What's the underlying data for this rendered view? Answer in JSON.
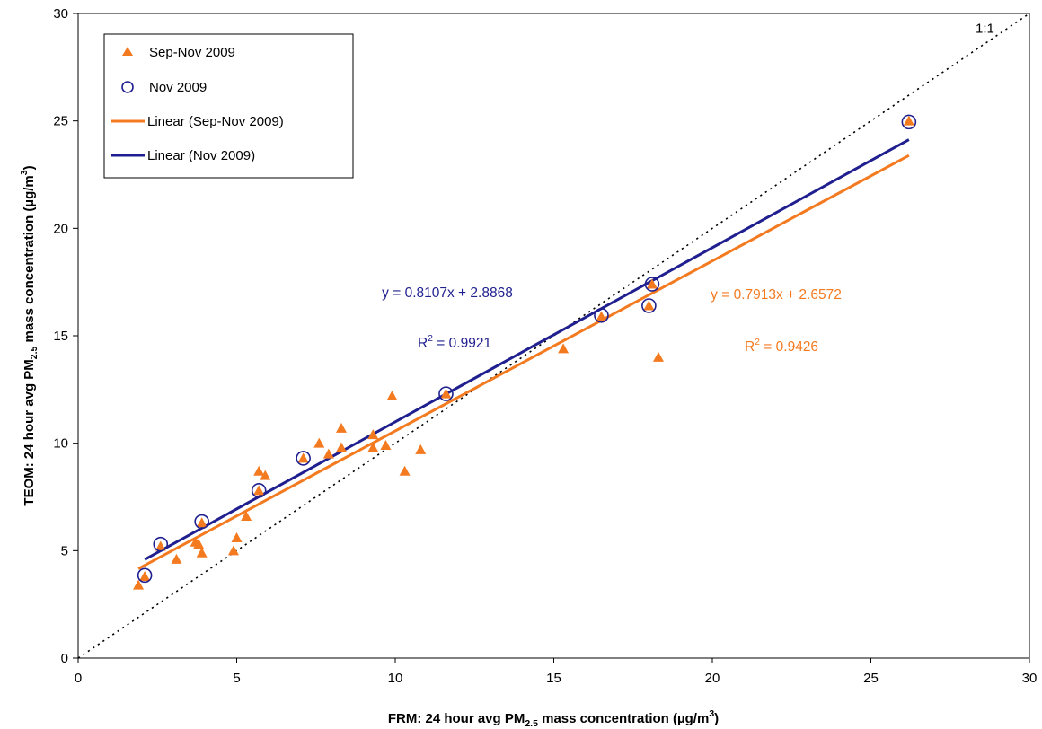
{
  "chart_data": {
    "type": "scatter",
    "xlabel": {
      "before": "FRM:  24 hour avg PM",
      "sub": "2.5",
      "middle": " mass concentration (µg/m",
      "sup": "3",
      "after": ")"
    },
    "ylabel": {
      "before": "TEOM:  24 hour avg PM",
      "sub": "2.5",
      "middle": " mass concentration (µg/m",
      "sup": "3",
      "after": ")"
    },
    "xlim": [
      0,
      30
    ],
    "ylim": [
      0,
      30
    ],
    "xticks": [
      0,
      5,
      10,
      15,
      20,
      25,
      30
    ],
    "yticks": [
      0,
      5,
      10,
      15,
      20,
      25,
      30
    ],
    "grid": false,
    "legend_position": "top-left",
    "series": [
      {
        "name": "Sep-Nov 2009",
        "marker": "triangle",
        "color": "#F47A20",
        "points": [
          [
            1.9,
            3.4
          ],
          [
            2.1,
            3.8
          ],
          [
            2.6,
            5.2
          ],
          [
            3.1,
            4.6
          ],
          [
            3.7,
            5.4
          ],
          [
            3.8,
            5.3
          ],
          [
            3.9,
            4.9
          ],
          [
            3.9,
            6.3
          ],
          [
            4.9,
            5.0
          ],
          [
            5.0,
            5.6
          ],
          [
            5.3,
            6.6
          ],
          [
            5.7,
            7.8
          ],
          [
            5.7,
            8.7
          ],
          [
            5.9,
            8.5
          ],
          [
            7.1,
            9.3
          ],
          [
            7.6,
            10.0
          ],
          [
            7.9,
            9.5
          ],
          [
            8.3,
            9.8
          ],
          [
            8.3,
            10.7
          ],
          [
            9.3,
            10.4
          ],
          [
            9.3,
            9.8
          ],
          [
            9.7,
            9.9
          ],
          [
            9.9,
            12.2
          ],
          [
            10.3,
            8.7
          ],
          [
            10.8,
            9.7
          ],
          [
            11.6,
            12.3
          ],
          [
            15.3,
            14.4
          ],
          [
            16.5,
            15.9
          ],
          [
            18.0,
            16.4
          ],
          [
            18.1,
            17.4
          ],
          [
            18.3,
            14.0
          ],
          [
            26.2,
            25.0
          ]
        ]
      },
      {
        "name": "Nov 2009",
        "marker": "open-circle",
        "color": "#1F1F8F",
        "points": [
          [
            2.1,
            3.85
          ],
          [
            2.6,
            5.3
          ],
          [
            3.9,
            6.35
          ],
          [
            5.7,
            7.8
          ],
          [
            7.1,
            9.3
          ],
          [
            11.6,
            12.3
          ],
          [
            16.5,
            15.95
          ],
          [
            18.0,
            16.4
          ],
          [
            18.1,
            17.4
          ],
          [
            26.2,
            24.95
          ]
        ]
      }
    ],
    "trendlines": [
      {
        "name": "Linear (Sep-Nov 2009)",
        "color": "#F47A20",
        "slope": 0.7913,
        "intercept": 2.6572,
        "x_range": [
          1.9,
          26.2
        ],
        "equation": "y = 0.7913x + 2.6572",
        "r2_label": "R",
        "r2_sup": "2",
        "r2_value": " = 0.9426"
      },
      {
        "name": "Linear (Nov 2009)",
        "color": "#1F1F8F",
        "slope": 0.8107,
        "intercept": 2.8868,
        "x_range": [
          2.1,
          26.2
        ],
        "equation": "y = 0.8107x + 2.8868",
        "r2_label": "R",
        "r2_sup": "2",
        "r2_value": " = 0.9921"
      }
    ],
    "reference_line": {
      "label": "1:1",
      "slope": 1,
      "intercept": 0,
      "style": "dotted",
      "color": "#000000"
    }
  }
}
